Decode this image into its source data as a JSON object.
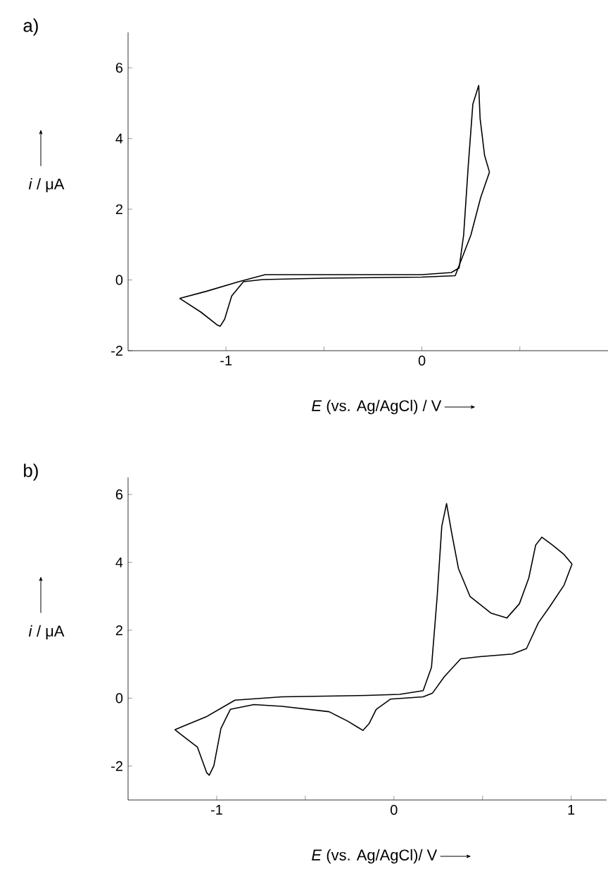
{
  "chart_data": [
    {
      "type": "line",
      "title": "a)",
      "xlabel": "*E* (vs. Ag/AgCl) / V",
      "ylabel": "*i* / μA",
      "marker": "none",
      "line_style": "solid",
      "grid": false,
      "xlim": [
        -1.5,
        0.95
      ],
      "ylim": [
        -2,
        7
      ],
      "xticks": [
        {
          "value": -1,
          "label": "-1"
        },
        {
          "value": -0.5,
          "label": null
        },
        {
          "value": 0,
          "label": "0"
        },
        {
          "value": 0.5,
          "label": null
        }
      ],
      "yticks": [
        -2,
        0,
        2,
        4,
        6
      ],
      "series": [
        {
          "color": "#000000",
          "x": [
            0.345,
            0.32,
            0.297,
            0.29,
            0.26,
            0.237,
            0.213,
            0.19,
            0.15,
            0,
            -0.5,
            -0.8,
            -0.935,
            -1.1,
            -1.237
          ],
          "values": [
            3.05,
            3.52,
            4.57,
            5.5,
            4.97,
            3.26,
            1.27,
            0.34,
            0.21,
            0.15,
            0.15,
            0.15,
            -0.05,
            -0.32,
            -0.52
          ]
        },
        {
          "color": "#000000",
          "x": [
            -1.237,
            -1.128,
            -1.043,
            -1.03,
            -1.007,
            -0.971,
            -0.911,
            -0.814,
            -0.5,
            0,
            0.17,
            0.25,
            0.3,
            0.333,
            0.345
          ],
          "values": [
            -0.52,
            -0.91,
            -1.28,
            -1.31,
            -1.11,
            -0.45,
            -0.05,
            0.01,
            0.05,
            0.08,
            0.12,
            1.27,
            2.33,
            2.86,
            3.05
          ]
        }
      ]
    },
    {
      "type": "line",
      "title": "b)",
      "xlabel": "*E* (vs. Ag/AgCl)/ V",
      "ylabel": "*i* / μA",
      "marker": "none",
      "line_style": "solid",
      "grid": false,
      "xlim": [
        -1.5,
        1.2
      ],
      "ylim": [
        -3,
        6.5
      ],
      "xticks": [
        {
          "value": -1,
          "label": "-1"
        },
        {
          "value": -0.5,
          "label": null
        },
        {
          "value": 0,
          "label": "0"
        },
        {
          "value": 0.5,
          "label": null
        },
        {
          "value": 1,
          "label": "1"
        }
      ],
      "yticks": [
        -2,
        0,
        2,
        4,
        6
      ],
      "series": [
        {
          "color": "#000000",
          "x": [
            1.005,
            0.96,
            0.894,
            0.835,
            0.8,
            0.761,
            0.708,
            0.637,
            0.549,
            0.43,
            0.364,
            0.324,
            0.297,
            0.27,
            0.244,
            0.212,
            0.165,
            0.032,
            -0.154,
            -0.631,
            -0.897,
            -1.056,
            -1.236
          ],
          "values": [
            3.95,
            4.23,
            4.51,
            4.74,
            4.51,
            3.54,
            2.78,
            2.36,
            2.5,
            2.99,
            3.82,
            4.92,
            5.73,
            5.06,
            2.99,
            0.91,
            0.22,
            0.11,
            0.08,
            0.04,
            -0.06,
            -0.54,
            -0.93
          ]
        },
        {
          "color": "#000000",
          "x": [
            -1.236,
            -1.109,
            -1.056,
            -1.042,
            -1.016,
            -0.976,
            -0.923,
            -0.79,
            -0.631,
            -0.366,
            -0.26,
            -0.175,
            -0.14,
            -0.1,
            -0.02,
            0.165,
            0.218,
            0.284,
            0.377,
            0.483,
            0.668,
            0.748,
            0.815,
            0.881,
            0.96,
            1.005
          ],
          "values": [
            -0.93,
            -1.44,
            -2.2,
            -2.27,
            -1.99,
            -0.89,
            -0.33,
            -0.19,
            -0.24,
            -0.4,
            -0.68,
            -0.95,
            -0.75,
            -0.33,
            -0.03,
            0.04,
            0.15,
            0.63,
            1.16,
            1.22,
            1.3,
            1.46,
            2.22,
            2.71,
            3.33,
            3.95
          ]
        }
      ]
    }
  ]
}
